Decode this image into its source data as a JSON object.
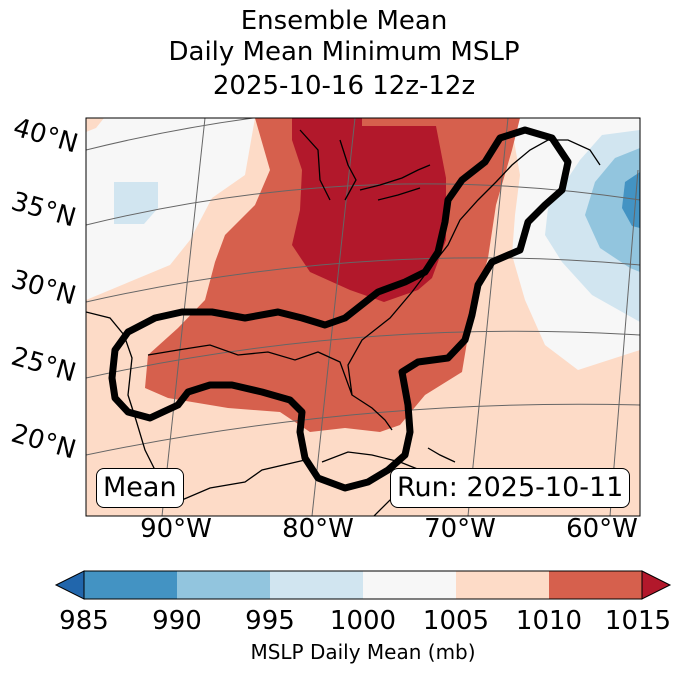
{
  "title": {
    "line1": "Ensemble Mean",
    "line2": "Daily Mean Minimum MSLP",
    "line3": "2025-10-16 12z-12z"
  },
  "map": {
    "lat_labels": [
      "40°N",
      "35°N",
      "30°N",
      "25°N",
      "20°N"
    ],
    "lon_labels": [
      "90°W",
      "80°W",
      "70°W",
      "60°W"
    ],
    "mean_label": "Mean",
    "run_label": "Run: 2025-10-11",
    "fill_colors": {
      "c1015": "#b2182b",
      "c1010": "#d6604d",
      "c1005": "#fddbc7",
      "c1000": "#f7f7f7",
      "c995": "#d1e5f0",
      "c990": "#92c5de",
      "c985": "#4393c3",
      "clow": "#2166ac"
    }
  },
  "colorbar": {
    "ticks": [
      "985",
      "990",
      "995",
      "1000",
      "1005",
      "1010",
      "1015"
    ],
    "label": "MSLP Daily Mean (mb)",
    "colors": [
      "#2166ac",
      "#4393c3",
      "#92c5de",
      "#d1e5f0",
      "#f7f7f7",
      "#fddbc7",
      "#d6604d",
      "#b2182b"
    ]
  }
}
